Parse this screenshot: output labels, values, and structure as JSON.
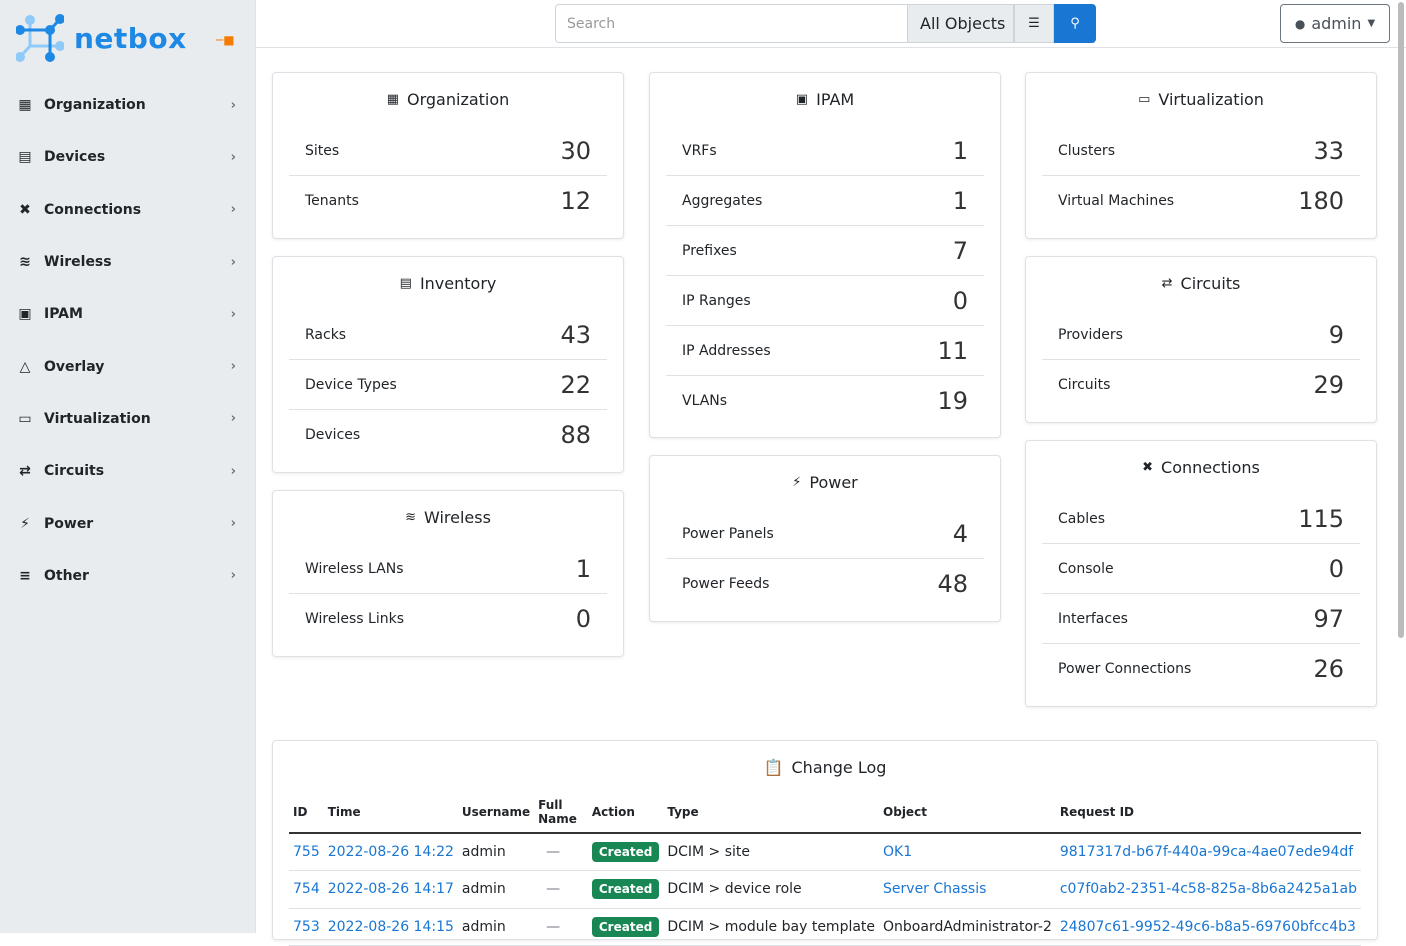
{
  "brand": {
    "name": "netbox",
    "accent": "#1e88e5"
  },
  "sidebar": {
    "items": [
      {
        "label": "Organization",
        "icon": "domain-icon"
      },
      {
        "label": "Devices",
        "icon": "server-icon"
      },
      {
        "label": "Connections",
        "icon": "plug-icon"
      },
      {
        "label": "Wireless",
        "icon": "wifi-icon"
      },
      {
        "label": "IPAM",
        "icon": "counter-icon"
      },
      {
        "label": "Overlay",
        "icon": "graph-icon"
      },
      {
        "label": "Virtualization",
        "icon": "monitor-icon"
      },
      {
        "label": "Circuits",
        "icon": "transit-icon"
      },
      {
        "label": "Power",
        "icon": "flash-icon"
      },
      {
        "label": "Other",
        "icon": "notes-icon"
      }
    ]
  },
  "topbar": {
    "search_placeholder": "Search",
    "object_select": "All Objects",
    "user": "admin"
  },
  "cards": [
    {
      "title": "Organization",
      "icon": "domain-icon",
      "rows": [
        [
          "Sites",
          "30"
        ],
        [
          "Tenants",
          "12"
        ]
      ]
    },
    {
      "title": "Inventory",
      "icon": "server-icon",
      "rows": [
        [
          "Racks",
          "43"
        ],
        [
          "Device Types",
          "22"
        ],
        [
          "Devices",
          "88"
        ]
      ]
    },
    {
      "title": "Wireless",
      "icon": "wifi-icon",
      "rows": [
        [
          "Wireless LANs",
          "1"
        ],
        [
          "Wireless Links",
          "0"
        ]
      ]
    },
    {
      "title": "IPAM",
      "icon": "counter-icon",
      "rows": [
        [
          "VRFs",
          "1"
        ],
        [
          "Aggregates",
          "1"
        ],
        [
          "Prefixes",
          "7"
        ],
        [
          "IP Ranges",
          "0"
        ],
        [
          "IP Addresses",
          "11"
        ],
        [
          "VLANs",
          "19"
        ]
      ]
    },
    {
      "title": "Power",
      "icon": "flash-icon",
      "rows": [
        [
          "Power Panels",
          "4"
        ],
        [
          "Power Feeds",
          "48"
        ]
      ]
    },
    {
      "title": "Virtualization",
      "icon": "monitor-icon",
      "rows": [
        [
          "Clusters",
          "33"
        ],
        [
          "Virtual Machines",
          "180"
        ]
      ]
    },
    {
      "title": "Circuits",
      "icon": "transit-icon",
      "rows": [
        [
          "Providers",
          "9"
        ],
        [
          "Circuits",
          "29"
        ]
      ]
    },
    {
      "title": "Connections",
      "icon": "plug-icon",
      "rows": [
        [
          "Cables",
          "115"
        ],
        [
          "Console",
          "0"
        ],
        [
          "Interfaces",
          "97"
        ],
        [
          "Power Connections",
          "26"
        ]
      ]
    }
  ],
  "changelog": {
    "title": "Change Log",
    "columns": [
      "ID",
      "Time",
      "Username",
      "Full Name",
      "Action",
      "Type",
      "Object",
      "Request ID"
    ],
    "rows": [
      [
        "755",
        "2022-08-26 14:22",
        "admin",
        "—",
        "Created",
        "DCIM > site",
        "OK1",
        "9817317d-b67f-440a-99ca-4ae07ede94df"
      ],
      [
        "754",
        "2022-08-26 14:17",
        "admin",
        "—",
        "Created",
        "DCIM > device role",
        "Server Chassis",
        "c07f0ab2-2351-4c58-825a-8b6a2425a1ab"
      ],
      [
        "753",
        "2022-08-26 14:15",
        "admin",
        "—",
        "Created",
        "DCIM > module bay template",
        "OnboardAdministrator-2",
        "24807c61-9952-49c6-b8a5-69760bfcc4b3"
      ]
    ]
  }
}
